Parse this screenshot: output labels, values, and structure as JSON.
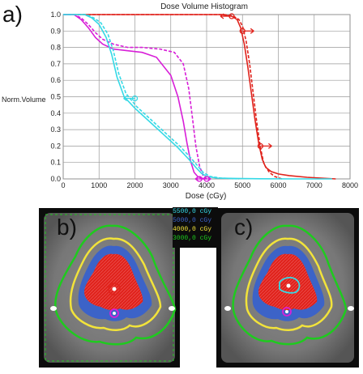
{
  "panel_labels": {
    "a": "a)",
    "b": "b)",
    "c": "c)"
  },
  "colors": {
    "red": "#e0231c",
    "magenta": "#d81fd8",
    "cyan": "#35d9e6",
    "green": "#1ecb1e",
    "blue": "#3c63c8",
    "yellow": "#f2e33a",
    "grid": "#9a9a9a",
    "text": "#222222"
  },
  "chart_data": {
    "type": "line",
    "title": "Dose Volume Histogram",
    "xlabel": "Dose (cGy)",
    "ylabel": "Norm.Volume",
    "xlim": [
      0,
      8000
    ],
    "ylim": [
      0,
      1.0
    ],
    "x_ticks": [
      "0",
      "1000",
      "2000",
      "3000",
      "4000",
      "5000",
      "6000",
      "7000",
      "8000"
    ],
    "y_ticks": [
      "0.0",
      "0.1",
      "0.2",
      "0.3",
      "0.4",
      "0.5",
      "0.6",
      "0.7",
      "0.8",
      "0.9",
      "1.0"
    ],
    "grid": true,
    "series": [
      {
        "color": "#e0231c",
        "dash": "solid",
        "x": [
          0,
          4400,
          4700,
          4850,
          4950,
          5050,
          5150,
          5250,
          5350,
          5450,
          5550,
          5650,
          5800,
          6000,
          6300,
          6800,
          7600
        ],
        "y": [
          1.0,
          1.0,
          0.99,
          0.97,
          0.92,
          0.82,
          0.68,
          0.52,
          0.36,
          0.22,
          0.12,
          0.07,
          0.045,
          0.03,
          0.02,
          0.01,
          0.0
        ]
      },
      {
        "color": "#e0231c",
        "dash": "dashed",
        "x": [
          0,
          4500,
          4750,
          4900,
          5000,
          5100,
          5200,
          5300,
          5400,
          5500,
          5600,
          5750,
          5900,
          6100
        ],
        "y": [
          1.0,
          1.0,
          0.99,
          0.97,
          0.93,
          0.84,
          0.7,
          0.52,
          0.34,
          0.19,
          0.09,
          0.04,
          0.015,
          0.0
        ]
      },
      {
        "color": "#d81fd8",
        "dash": "solid",
        "x": [
          0,
          300,
          500,
          700,
          900,
          1100,
          1400,
          1800,
          2200,
          2600,
          3000,
          3200,
          3350,
          3450,
          3550,
          3650,
          3750,
          3850,
          4000
        ],
        "y": [
          1.0,
          1.0,
          0.97,
          0.92,
          0.86,
          0.82,
          0.79,
          0.78,
          0.77,
          0.74,
          0.63,
          0.5,
          0.35,
          0.22,
          0.11,
          0.04,
          0.015,
          0.005,
          0.0
        ]
      },
      {
        "color": "#d81fd8",
        "dash": "dashed",
        "x": [
          0,
          300,
          500,
          700,
          900,
          1100,
          1400,
          1800,
          2200,
          2700,
          3100,
          3350,
          3500,
          3600,
          3700,
          3800,
          3900,
          4000
        ],
        "y": [
          1.0,
          1.0,
          0.98,
          0.94,
          0.89,
          0.85,
          0.82,
          0.8,
          0.8,
          0.79,
          0.77,
          0.7,
          0.55,
          0.38,
          0.2,
          0.08,
          0.02,
          0.0
        ]
      },
      {
        "color": "#35d9e6",
        "dash": "solid",
        "x": [
          0,
          600,
          800,
          1000,
          1200,
          1350,
          1500,
          1700,
          2000,
          2400,
          2800,
          3200,
          3500,
          3700,
          3850,
          4000,
          4300,
          4800,
          5500,
          6500,
          7500
        ],
        "y": [
          1.0,
          1.0,
          0.98,
          0.94,
          0.86,
          0.76,
          0.62,
          0.5,
          0.43,
          0.35,
          0.27,
          0.19,
          0.12,
          0.07,
          0.035,
          0.015,
          0.005,
          0.003,
          0.001,
          0.0,
          0.0
        ]
      },
      {
        "color": "#35d9e6",
        "dash": "dashed",
        "x": [
          0,
          650,
          850,
          1050,
          1250,
          1400,
          1550,
          1750,
          2050,
          2450,
          2850,
          3250,
          3550,
          3750,
          3900,
          4100,
          4400,
          4900
        ],
        "y": [
          1.0,
          1.0,
          0.98,
          0.95,
          0.88,
          0.78,
          0.64,
          0.52,
          0.44,
          0.36,
          0.28,
          0.2,
          0.13,
          0.08,
          0.04,
          0.015,
          0.005,
          0.0
        ]
      }
    ]
  },
  "legend": [
    {
      "label": "5500,0 cGy",
      "color": "#35d9e6"
    },
    {
      "label": "5000,0 cGy",
      "color": "#3c63c8"
    },
    {
      "label": "4000,0 cGy",
      "color": "#f2e33a"
    },
    {
      "label": "3000,0 cGy",
      "color": "#1ecb1e"
    }
  ]
}
